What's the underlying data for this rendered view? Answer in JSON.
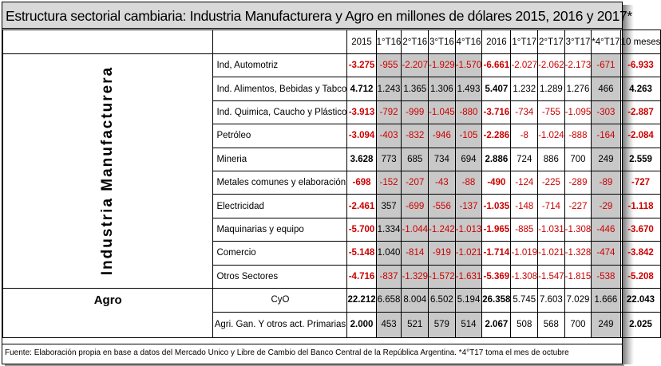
{
  "title": "Estructura sectorial cambiaria: Industria Manufacturera y Agro en millones de dólares 2015, 2016 y 2017*",
  "headers": [
    "2015",
    "1°T16",
    "2°T16",
    "3°T16",
    "4°T16",
    "2016",
    "1°T17",
    "2°T17",
    "3°T17",
    "*4°T17",
    "10 meses"
  ],
  "group_industria": "Industria Manufacturera",
  "group_agro": "Agro",
  "rows": [
    {
      "label": "Ind, Automotriz",
      "values": [
        "-3.275",
        "-955",
        "-2.207",
        "-1.929",
        "-1.570",
        "-6.661",
        "-2.027",
        "-2.062",
        "-2.173",
        "-671",
        "-6.933"
      ]
    },
    {
      "label": "Ind. Alimentos, Bebidas y Tabco",
      "values": [
        "4.712",
        "1.243",
        "1.365",
        "1.306",
        "1.493",
        "5.407",
        "1.232",
        "1.289",
        "1.276",
        "466",
        "4.263"
      ]
    },
    {
      "label": "Ind. Quimica, Caucho y Plástico",
      "values": [
        "-3.913",
        "-792",
        "-999",
        "-1.045",
        "-880",
        "-3.716",
        "-734",
        "-755",
        "-1.095",
        "-303",
        "-2.887"
      ]
    },
    {
      "label": "Petróleo",
      "values": [
        "-3.094",
        "-403",
        "-832",
        "-946",
        "-105",
        "-2.286",
        "-8",
        "-1.024",
        "-888",
        "-164",
        "-2.084"
      ]
    },
    {
      "label": "Mineria",
      "values": [
        "3.628",
        "773",
        "685",
        "734",
        "694",
        "2.886",
        "724",
        "886",
        "700",
        "249",
        "2.559"
      ]
    },
    {
      "label": "Metales comunes y elaboración",
      "values": [
        "-698",
        "-152",
        "-207",
        "-43",
        "-88",
        "-490",
        "-124",
        "-225",
        "-289",
        "-89",
        "-727"
      ]
    },
    {
      "label": "Electricidad",
      "values": [
        "-2.461",
        "357",
        "-699",
        "-556",
        "-137",
        "-1.035",
        "-148",
        "-714",
        "-227",
        "-29",
        "-1.118"
      ]
    },
    {
      "label": "Maquinarias y equipo",
      "values": [
        "-5.700",
        "1.334",
        "-1.044",
        "-1.242",
        "-1.013",
        "-1.965",
        "-885",
        "-1.031",
        "-1.308",
        "-446",
        "-3.670"
      ]
    },
    {
      "label": "Comercio",
      "values": [
        "-5.148",
        "1.040",
        "-814",
        "-919",
        "-1.021",
        "-1.714",
        "-1.019",
        "-1.021",
        "-1.328",
        "-474",
        "-3.842"
      ]
    },
    {
      "label": "Otros Sectores",
      "values": [
        "-4.716",
        "-837",
        "-1.329",
        "-1.572",
        "-1.631",
        "-5.369",
        "-1.308",
        "-1.547",
        "-1.815",
        "-538",
        "-5.208"
      ]
    }
  ],
  "agro_rows": [
    {
      "label": "CyO",
      "values": [
        "22.212",
        "6.658",
        "8.004",
        "6.502",
        "5.194",
        "26.358",
        "5.745",
        "7.603",
        "7.029",
        "1.666",
        "22.043"
      ]
    },
    {
      "label": "Agri. Gan. Y otros act. Primarias",
      "values": [
        "2.000",
        "453",
        "521",
        "579",
        "514",
        "2.067",
        "508",
        "568",
        "700",
        "249",
        "2.025"
      ]
    }
  ],
  "footnote": "Fuente: Elaboración propia en base a datos del Mercado Unico y Libre de Cambio del Banco Central de la República Argentina.  *4°T17 toma el mes de octubre",
  "colors": {
    "negative": "#cc0000",
    "title_bg": "#d9d9d9",
    "shaded": "#c8c8c8"
  }
}
